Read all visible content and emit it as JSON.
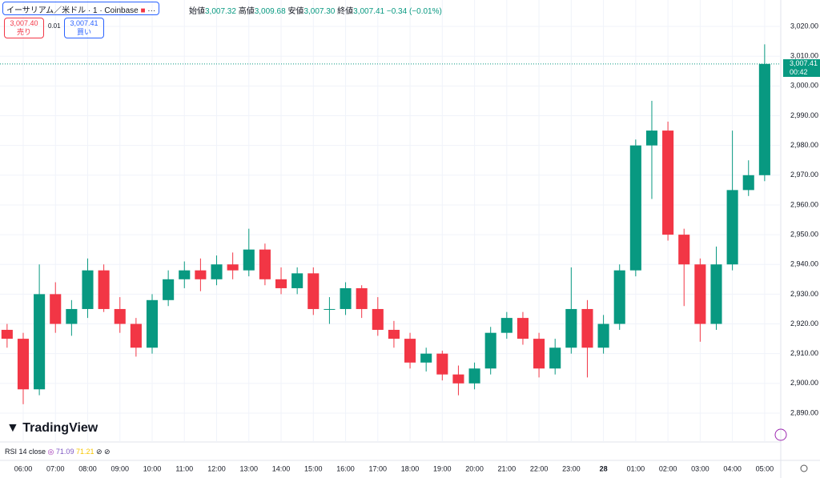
{
  "chart_data": {
    "type": "candlestick",
    "x": [
      5.5,
      6,
      6.5,
      7,
      7.5,
      8,
      8.5,
      9,
      9.5,
      10,
      10.5,
      11,
      11.5,
      12,
      12.5,
      13,
      13.5,
      14,
      14.5,
      15,
      15.5,
      16,
      16.5,
      17,
      17.5,
      18,
      18.5,
      19,
      19.5,
      20,
      20.5,
      21,
      21.5,
      22,
      22.5,
      23,
      23.5,
      24,
      24.5,
      25,
      25.5,
      26,
      26.5,
      27,
      27.5,
      28,
      28.5,
      29
    ],
    "open": [
      2918,
      2915,
      2898,
      2930,
      2920,
      2925,
      2938,
      2925,
      2920,
      2912,
      2928,
      2935,
      2938,
      2935,
      2940,
      2938,
      2945,
      2935,
      2932,
      2937,
      2925,
      2925,
      2932,
      2925,
      2918,
      2915,
      2907,
      2910,
      2903,
      2900,
      2905,
      2917,
      2922,
      2915,
      2905,
      2912,
      2925,
      2912,
      2920,
      2938,
      2980,
      2985,
      2950,
      2940,
      2920,
      2940,
      2965,
      2970
    ],
    "high": [
      2920,
      2917,
      2940,
      2934,
      2928,
      2942,
      2940,
      2929,
      2922,
      2930,
      2938,
      2941,
      2942,
      2943,
      2944,
      2952,
      2947,
      2939,
      2939,
      2939,
      2929,
      2934,
      2933,
      2929,
      2921,
      2917,
      2912,
      2911,
      2906,
      2907,
      2919,
      2924,
      2924,
      2917,
      2915,
      2939,
      2928,
      2923,
      2940,
      2982,
      2995,
      2988,
      2952,
      2942,
      2946,
      2985,
      2975,
      3014
    ],
    "low": [
      2912,
      2893,
      2896,
      2917,
      2916,
      2922,
      2924,
      2917,
      2909,
      2910,
      2926,
      2932,
      2931,
      2933,
      2935,
      2936,
      2933,
      2930,
      2930,
      2923,
      2920,
      2923,
      2922,
      2916,
      2912,
      2905,
      2904,
      2901,
      2896,
      2898,
      2903,
      2915,
      2913,
      2902,
      2903,
      2910,
      2902,
      2910,
      2918,
      2936,
      2962,
      2948,
      2926,
      2914,
      2918,
      2938,
      2963,
      2968
    ],
    "close": [
      2915,
      2898,
      2930,
      2920,
      2925,
      2938,
      2925,
      2920,
      2912,
      2928,
      2935,
      2938,
      2935,
      2940,
      2938,
      2945,
      2935,
      2932,
      2937,
      2925,
      2925,
      2932,
      2925,
      2918,
      2915,
      2907,
      2910,
      2903,
      2900,
      2905,
      2917,
      2922,
      2915,
      2905,
      2912,
      2925,
      2912,
      2920,
      2938,
      2980,
      2985,
      2950,
      2940,
      2920,
      2940,
      2965,
      2970,
      3007.41
    ],
    "up_color": "#089981",
    "down_color": "#f23645",
    "xlim": [
      5.28,
      29.5
    ],
    "ylim": [
      2880.3,
      3028.9
    ],
    "yticks": [
      {
        "value": 2890,
        "label": "2,890.00"
      },
      {
        "value": 2900,
        "label": "2,900.00"
      },
      {
        "value": 2910,
        "label": "2,910.00"
      },
      {
        "value": 2920,
        "label": "2,920.00"
      },
      {
        "value": 2930,
        "label": "2,930.00"
      },
      {
        "value": 2940,
        "label": "2,940.00"
      },
      {
        "value": 2950,
        "label": "2,950.00"
      },
      {
        "value": 2960,
        "label": "2,960.00"
      },
      {
        "value": 2970,
        "label": "2,970.00"
      },
      {
        "value": 2980,
        "label": "2,980.00"
      },
      {
        "value": 2990,
        "label": "2,990.00"
      },
      {
        "value": 3000,
        "label": "3,000.00"
      },
      {
        "value": 3010,
        "label": "3,010.00"
      },
      {
        "value": 3020,
        "label": "3,020.00"
      }
    ],
    "xticks": [
      {
        "value": 6,
        "label": "06:00"
      },
      {
        "value": 7,
        "label": "07:00"
      },
      {
        "value": 8,
        "label": "08:00"
      },
      {
        "value": 9,
        "label": "09:00"
      },
      {
        "value": 10,
        "label": "10:00"
      },
      {
        "value": 11,
        "label": "11:00"
      },
      {
        "value": 12,
        "label": "12:00"
      },
      {
        "value": 13,
        "label": "13:00"
      },
      {
        "value": 14,
        "label": "14:00"
      },
      {
        "value": 15,
        "label": "15:00"
      },
      {
        "value": 16,
        "label": "16:00"
      },
      {
        "value": 17,
        "label": "17:00"
      },
      {
        "value": 18,
        "label": "18:00"
      },
      {
        "value": 19,
        "label": "19:00"
      },
      {
        "value": 20,
        "label": "20:00"
      },
      {
        "value": 21,
        "label": "21:00"
      },
      {
        "value": 22,
        "label": "22:00"
      },
      {
        "value": 23,
        "label": "23:00"
      },
      {
        "value": 24,
        "label": "28"
      },
      {
        "value": 25,
        "label": "01:00"
      },
      {
        "value": 26,
        "label": "02:00"
      },
      {
        "value": 27,
        "label": "03:00"
      },
      {
        "value": 28,
        "label": "04:00"
      },
      {
        "value": 29,
        "label": "05:00"
      }
    ],
    "grid": true,
    "last_price": {
      "value": 3007.41,
      "label": "3,007.41"
    },
    "countdown": "00:42"
  },
  "header": {
    "symbol": "イーサリアム／米ドル · 1 · Coinbase",
    "open_label": "始値",
    "open": "3,007.32",
    "high_label": "高値",
    "high": "3,009.68",
    "low_label": "安値",
    "low": "3,007.30",
    "close_label": "終値",
    "close": "3,007.41",
    "change": "−0.34 (−0.01%)"
  },
  "trade": {
    "sell_price": "3,007.40",
    "sell": "売り",
    "spread": "0.01",
    "buy_price": "3,007.41",
    "buy": "買い"
  },
  "rsi": {
    "label": "RSI 14 close",
    "value1": "71.09",
    "value2": "71.21"
  },
  "logo": "TradingView"
}
